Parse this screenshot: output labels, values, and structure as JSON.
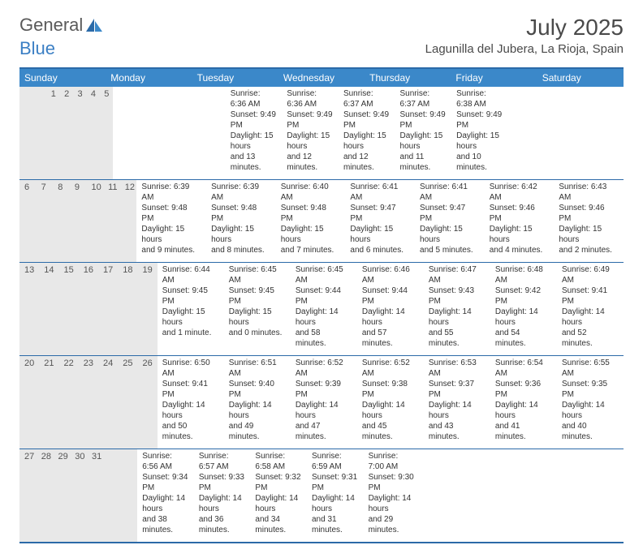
{
  "brand": {
    "general": "General",
    "blue": "Blue"
  },
  "title": "July 2025",
  "location": "Lagunilla del Jubera, La Rioja, Spain",
  "colors": {
    "header_bg": "#3b88c9",
    "border": "#2b6aa8",
    "daynum_bg": "#e8e8e8",
    "text": "#333333"
  },
  "weekdays": [
    "Sunday",
    "Monday",
    "Tuesday",
    "Wednesday",
    "Thursday",
    "Friday",
    "Saturday"
  ],
  "weeks": [
    [
      {
        "day": "",
        "lines": []
      },
      {
        "day": "",
        "lines": []
      },
      {
        "day": "1",
        "lines": [
          "Sunrise: 6:36 AM",
          "Sunset: 9:49 PM",
          "Daylight: 15 hours",
          "and 13 minutes."
        ]
      },
      {
        "day": "2",
        "lines": [
          "Sunrise: 6:36 AM",
          "Sunset: 9:49 PM",
          "Daylight: 15 hours",
          "and 12 minutes."
        ]
      },
      {
        "day": "3",
        "lines": [
          "Sunrise: 6:37 AM",
          "Sunset: 9:49 PM",
          "Daylight: 15 hours",
          "and 12 minutes."
        ]
      },
      {
        "day": "4",
        "lines": [
          "Sunrise: 6:37 AM",
          "Sunset: 9:49 PM",
          "Daylight: 15 hours",
          "and 11 minutes."
        ]
      },
      {
        "day": "5",
        "lines": [
          "Sunrise: 6:38 AM",
          "Sunset: 9:49 PM",
          "Daylight: 15 hours",
          "and 10 minutes."
        ]
      }
    ],
    [
      {
        "day": "6",
        "lines": [
          "Sunrise: 6:39 AM",
          "Sunset: 9:48 PM",
          "Daylight: 15 hours",
          "and 9 minutes."
        ]
      },
      {
        "day": "7",
        "lines": [
          "Sunrise: 6:39 AM",
          "Sunset: 9:48 PM",
          "Daylight: 15 hours",
          "and 8 minutes."
        ]
      },
      {
        "day": "8",
        "lines": [
          "Sunrise: 6:40 AM",
          "Sunset: 9:48 PM",
          "Daylight: 15 hours",
          "and 7 minutes."
        ]
      },
      {
        "day": "9",
        "lines": [
          "Sunrise: 6:41 AM",
          "Sunset: 9:47 PM",
          "Daylight: 15 hours",
          "and 6 minutes."
        ]
      },
      {
        "day": "10",
        "lines": [
          "Sunrise: 6:41 AM",
          "Sunset: 9:47 PM",
          "Daylight: 15 hours",
          "and 5 minutes."
        ]
      },
      {
        "day": "11",
        "lines": [
          "Sunrise: 6:42 AM",
          "Sunset: 9:46 PM",
          "Daylight: 15 hours",
          "and 4 minutes."
        ]
      },
      {
        "day": "12",
        "lines": [
          "Sunrise: 6:43 AM",
          "Sunset: 9:46 PM",
          "Daylight: 15 hours",
          "and 2 minutes."
        ]
      }
    ],
    [
      {
        "day": "13",
        "lines": [
          "Sunrise: 6:44 AM",
          "Sunset: 9:45 PM",
          "Daylight: 15 hours",
          "and 1 minute."
        ]
      },
      {
        "day": "14",
        "lines": [
          "Sunrise: 6:45 AM",
          "Sunset: 9:45 PM",
          "Daylight: 15 hours",
          "and 0 minutes."
        ]
      },
      {
        "day": "15",
        "lines": [
          "Sunrise: 6:45 AM",
          "Sunset: 9:44 PM",
          "Daylight: 14 hours",
          "and 58 minutes."
        ]
      },
      {
        "day": "16",
        "lines": [
          "Sunrise: 6:46 AM",
          "Sunset: 9:44 PM",
          "Daylight: 14 hours",
          "and 57 minutes."
        ]
      },
      {
        "day": "17",
        "lines": [
          "Sunrise: 6:47 AM",
          "Sunset: 9:43 PM",
          "Daylight: 14 hours",
          "and 55 minutes."
        ]
      },
      {
        "day": "18",
        "lines": [
          "Sunrise: 6:48 AM",
          "Sunset: 9:42 PM",
          "Daylight: 14 hours",
          "and 54 minutes."
        ]
      },
      {
        "day": "19",
        "lines": [
          "Sunrise: 6:49 AM",
          "Sunset: 9:41 PM",
          "Daylight: 14 hours",
          "and 52 minutes."
        ]
      }
    ],
    [
      {
        "day": "20",
        "lines": [
          "Sunrise: 6:50 AM",
          "Sunset: 9:41 PM",
          "Daylight: 14 hours",
          "and 50 minutes."
        ]
      },
      {
        "day": "21",
        "lines": [
          "Sunrise: 6:51 AM",
          "Sunset: 9:40 PM",
          "Daylight: 14 hours",
          "and 49 minutes."
        ]
      },
      {
        "day": "22",
        "lines": [
          "Sunrise: 6:52 AM",
          "Sunset: 9:39 PM",
          "Daylight: 14 hours",
          "and 47 minutes."
        ]
      },
      {
        "day": "23",
        "lines": [
          "Sunrise: 6:52 AM",
          "Sunset: 9:38 PM",
          "Daylight: 14 hours",
          "and 45 minutes."
        ]
      },
      {
        "day": "24",
        "lines": [
          "Sunrise: 6:53 AM",
          "Sunset: 9:37 PM",
          "Daylight: 14 hours",
          "and 43 minutes."
        ]
      },
      {
        "day": "25",
        "lines": [
          "Sunrise: 6:54 AM",
          "Sunset: 9:36 PM",
          "Daylight: 14 hours",
          "and 41 minutes."
        ]
      },
      {
        "day": "26",
        "lines": [
          "Sunrise: 6:55 AM",
          "Sunset: 9:35 PM",
          "Daylight: 14 hours",
          "and 40 minutes."
        ]
      }
    ],
    [
      {
        "day": "27",
        "lines": [
          "Sunrise: 6:56 AM",
          "Sunset: 9:34 PM",
          "Daylight: 14 hours",
          "and 38 minutes."
        ]
      },
      {
        "day": "28",
        "lines": [
          "Sunrise: 6:57 AM",
          "Sunset: 9:33 PM",
          "Daylight: 14 hours",
          "and 36 minutes."
        ]
      },
      {
        "day": "29",
        "lines": [
          "Sunrise: 6:58 AM",
          "Sunset: 9:32 PM",
          "Daylight: 14 hours",
          "and 34 minutes."
        ]
      },
      {
        "day": "30",
        "lines": [
          "Sunrise: 6:59 AM",
          "Sunset: 9:31 PM",
          "Daylight: 14 hours",
          "and 31 minutes."
        ]
      },
      {
        "day": "31",
        "lines": [
          "Sunrise: 7:00 AM",
          "Sunset: 9:30 PM",
          "Daylight: 14 hours",
          "and 29 minutes."
        ]
      },
      {
        "day": "",
        "lines": []
      },
      {
        "day": "",
        "lines": []
      }
    ]
  ]
}
